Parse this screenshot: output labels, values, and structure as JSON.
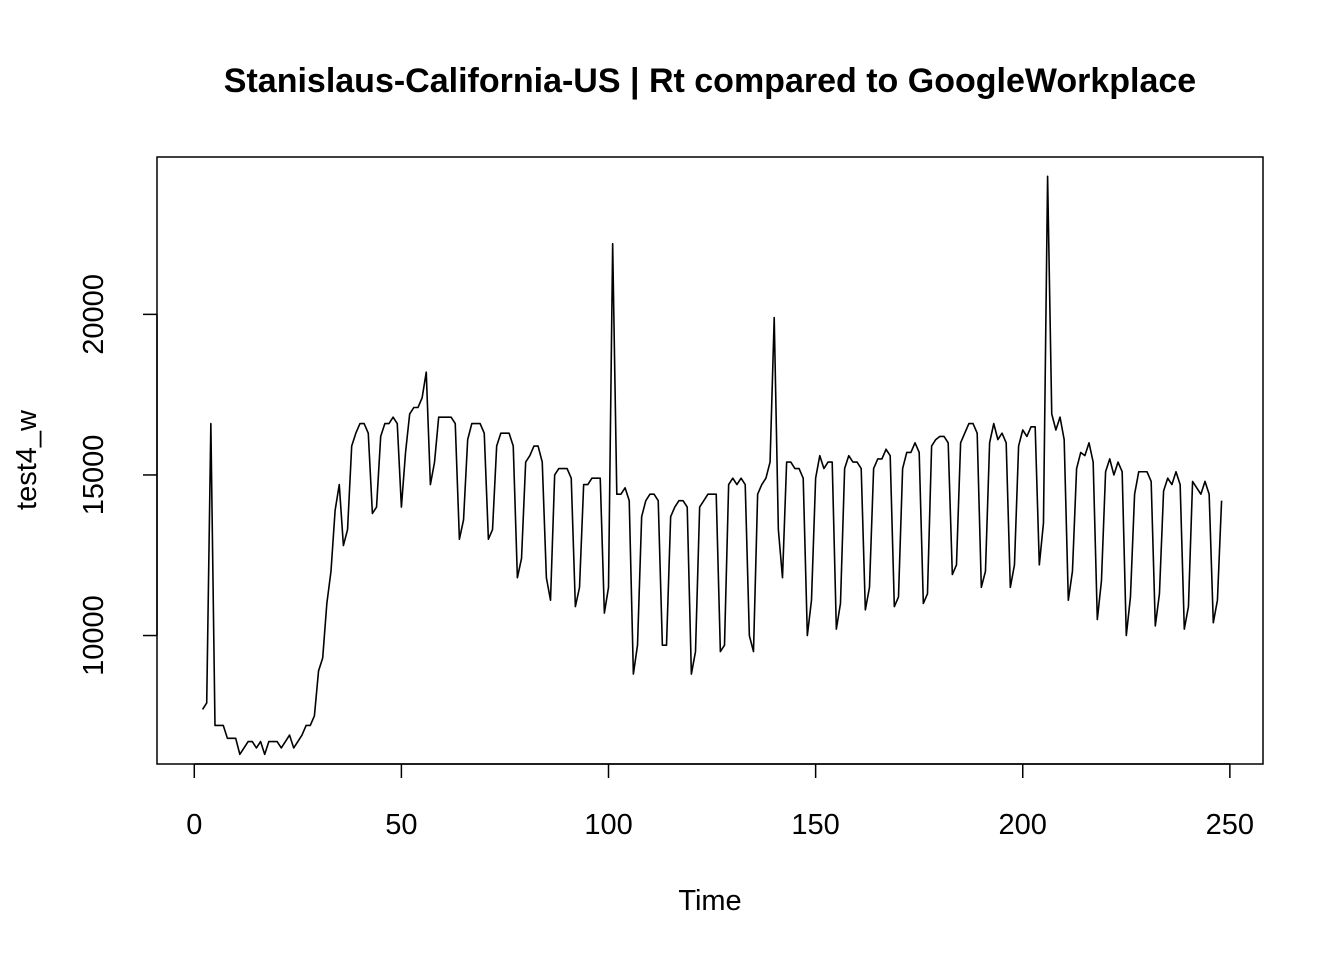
{
  "chart_data": {
    "type": "line",
    "title": "Stanislaus-California-US | Rt compared to GoogleWorkplace",
    "xlabel": "Time",
    "ylabel": "test4_w",
    "xlim": [
      -9,
      258
    ],
    "ylim": [
      6000,
      24900
    ],
    "xticks": [
      0,
      50,
      100,
      150,
      200,
      250
    ],
    "yticks": [
      10000,
      15000,
      20000
    ],
    "grid": false,
    "legend": "none",
    "line_color": "#000000",
    "series": [
      {
        "x": [
          2,
          3,
          4,
          5,
          6,
          7,
          8,
          9,
          10,
          11,
          12,
          13,
          14,
          15,
          16,
          17,
          18,
          19,
          20,
          21,
          22,
          23,
          24,
          25,
          26,
          27,
          28,
          29,
          30,
          31,
          32,
          33,
          34,
          35,
          36,
          37,
          38,
          39,
          40,
          41,
          42,
          43,
          44,
          45,
          46,
          47,
          48,
          49,
          50,
          51,
          52,
          53,
          54,
          55,
          56,
          57,
          58,
          59,
          60,
          61,
          62,
          63,
          64,
          65,
          66,
          67,
          68,
          69,
          70,
          71,
          72,
          73,
          74,
          75,
          76,
          77,
          78,
          79,
          80,
          81,
          82,
          83,
          84,
          85,
          86,
          87,
          88,
          89,
          90,
          91,
          92,
          93,
          94,
          95,
          96,
          97,
          98,
          99,
          100,
          101,
          102,
          103,
          104,
          105,
          106,
          107,
          108,
          109,
          110,
          111,
          112,
          113,
          114,
          115,
          116,
          117,
          118,
          119,
          120,
          121,
          122,
          123,
          124,
          125,
          126,
          127,
          128,
          129,
          130,
          131,
          132,
          133,
          134,
          135,
          136,
          137,
          138,
          139,
          140,
          141,
          142,
          143,
          144,
          145,
          146,
          147,
          148,
          149,
          150,
          151,
          152,
          153,
          154,
          155,
          156,
          157,
          158,
          159,
          160,
          161,
          162,
          163,
          164,
          165,
          166,
          167,
          168,
          169,
          170,
          171,
          172,
          173,
          174,
          175,
          176,
          177,
          178,
          179,
          180,
          181,
          182,
          183,
          184,
          185,
          186,
          187,
          188,
          189,
          190,
          191,
          192,
          193,
          194,
          195,
          196,
          197,
          198,
          199,
          200,
          201,
          202,
          203,
          204,
          205,
          206,
          207,
          208,
          209,
          210,
          211,
          212,
          213,
          214,
          215,
          216,
          217,
          218,
          219,
          220,
          221,
          222,
          223,
          224,
          225,
          226,
          227,
          228,
          229,
          230,
          231,
          232,
          233,
          234,
          235,
          236,
          237,
          238,
          239,
          240,
          241,
          242,
          243,
          244,
          245,
          246,
          247,
          248
        ],
        "y": [
          7700,
          7900,
          16600,
          7200,
          7200,
          7200,
          6800,
          6800,
          6800,
          6300,
          6500,
          6700,
          6700,
          6500,
          6700,
          6300,
          6700,
          6700,
          6700,
          6500,
          6700,
          6900,
          6500,
          6700,
          6900,
          7200,
          7200,
          7500,
          8900,
          9300,
          11000,
          12000,
          13900,
          14700,
          12800,
          13300,
          15900,
          16300,
          16600,
          16600,
          16300,
          13800,
          14000,
          16200,
          16600,
          16600,
          16800,
          16600,
          14000,
          15700,
          16900,
          17100,
          17100,
          17400,
          18200,
          14700,
          15400,
          16800,
          16800,
          16800,
          16800,
          16600,
          13000,
          13600,
          16100,
          16600,
          16600,
          16600,
          16300,
          13000,
          13300,
          15900,
          16300,
          16300,
          16300,
          15900,
          11800,
          12400,
          15400,
          15600,
          15900,
          15900,
          15400,
          11800,
          11100,
          15000,
          15200,
          15200,
          15200,
          14900,
          10900,
          11500,
          14700,
          14700,
          14900,
          14900,
          14900,
          10700,
          11500,
          22200,
          14400,
          14400,
          14600,
          14200,
          8800,
          9700,
          13700,
          14200,
          14400,
          14400,
          14200,
          9700,
          9700,
          13700,
          14000,
          14200,
          14200,
          14000,
          8800,
          9500,
          14000,
          14200,
          14400,
          14400,
          14400,
          9500,
          9700,
          14700,
          14900,
          14700,
          14900,
          14700,
          10000,
          9500,
          14400,
          14700,
          14900,
          15400,
          19900,
          13300,
          11800,
          15400,
          15400,
          15200,
          15200,
          14900,
          10000,
          11100,
          14900,
          15600,
          15200,
          15400,
          15400,
          10200,
          11000,
          15200,
          15600,
          15400,
          15400,
          15200,
          10800,
          11500,
          15200,
          15500,
          15500,
          15800,
          15600,
          10900,
          11200,
          15200,
          15700,
          15700,
          16000,
          15700,
          11000,
          11300,
          15900,
          16100,
          16200,
          16200,
          16000,
          11900,
          12200,
          16000,
          16300,
          16600,
          16600,
          16300,
          11500,
          12000,
          16000,
          16600,
          16100,
          16300,
          16000,
          11500,
          12200,
          15900,
          16400,
          16200,
          16500,
          16500,
          12200,
          13500,
          24300,
          16900,
          16400,
          16800,
          16100,
          11100,
          12000,
          15200,
          15700,
          15600,
          16000,
          15400,
          10500,
          11700,
          15100,
          15500,
          15000,
          15400,
          15100,
          10000,
          11200,
          14400,
          15100,
          15100,
          15100,
          14800,
          10300,
          11300,
          14500,
          14900,
          14700,
          15100,
          14700,
          10200,
          10900,
          14800,
          14600,
          14400,
          14800,
          14400,
          10400,
          11100,
          14200
        ]
      }
    ]
  }
}
